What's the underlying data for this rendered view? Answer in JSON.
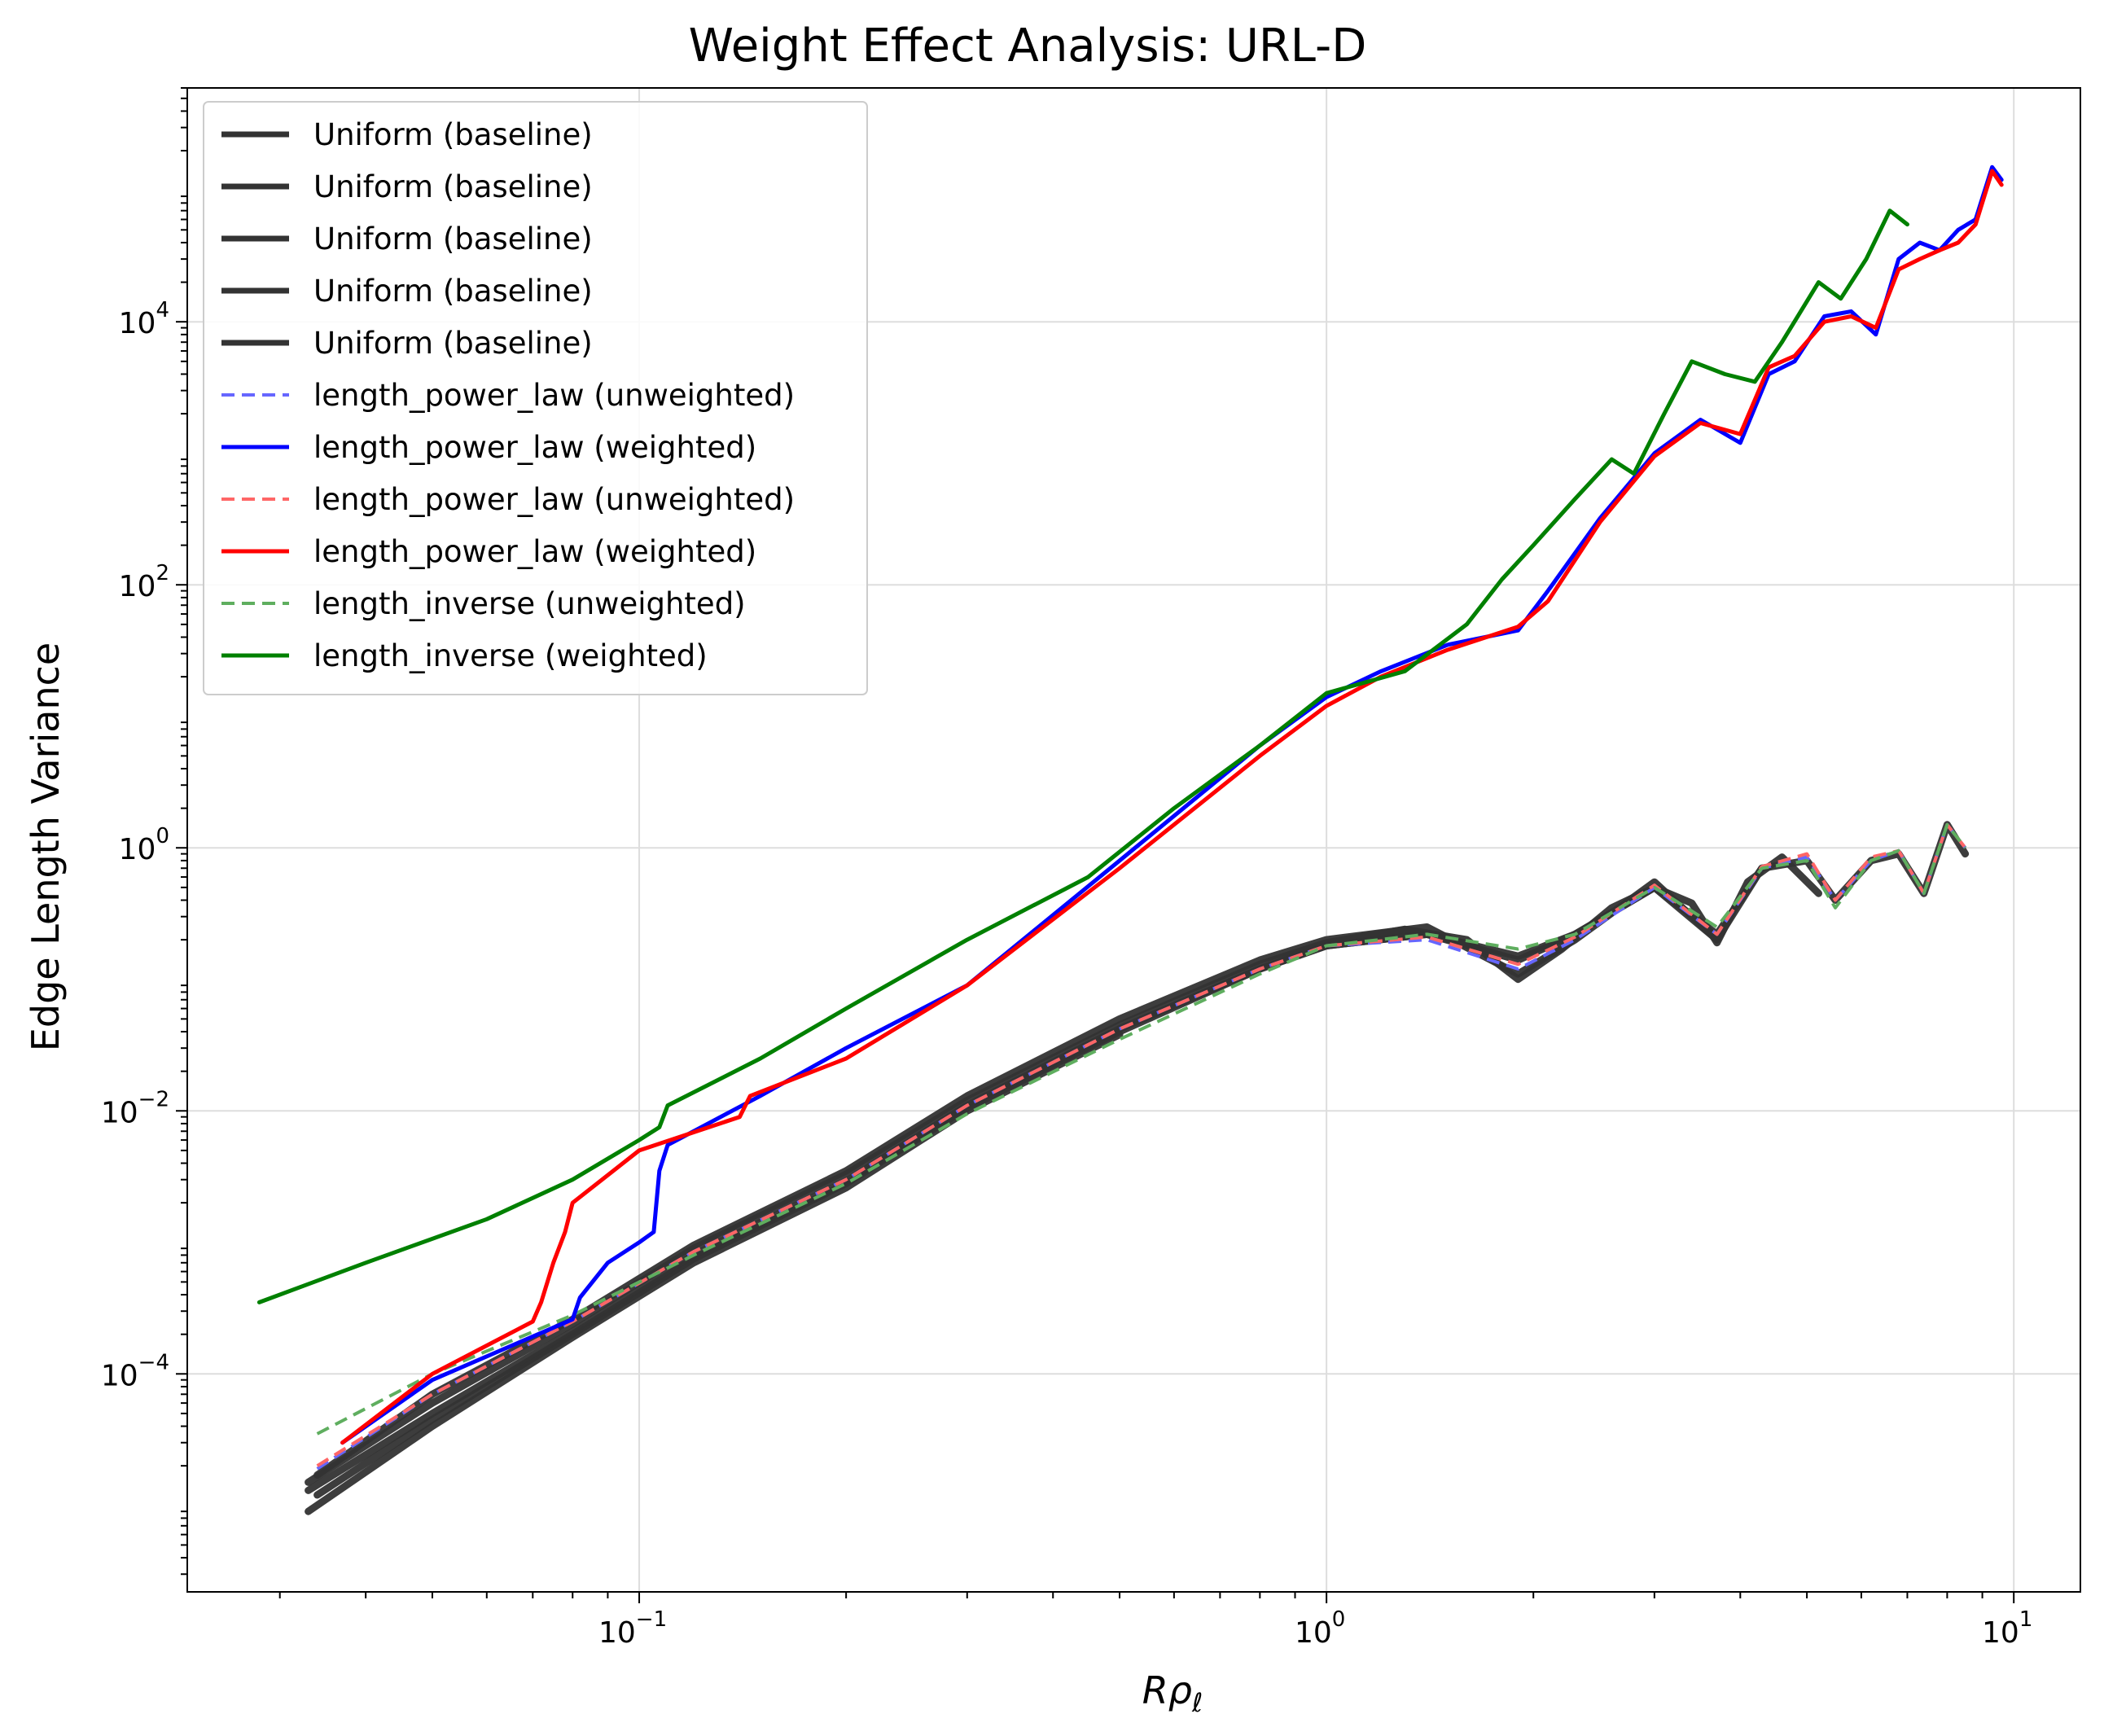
{
  "chart_data": {
    "type": "line",
    "title": "Weight Effect Analysis: URL-D",
    "xlabel_main": "R",
    "xlabel_rho": "ρ",
    "xlabel_sub": "ℓ",
    "ylabel": "Edge Length Variance",
    "xscale": "log",
    "yscale": "log",
    "xlim": [
      0.022,
      12.5
    ],
    "ylim": [
      2.2e-06,
      0.00045,
      600000
    ],
    "y_range": [
      2.2e-06,
      600000
    ],
    "grid": true,
    "legend_position": "top-left",
    "x_ticks": [
      {
        "value": 0.1,
        "base": "10",
        "exp": "−1"
      },
      {
        "value": 1,
        "base": "10",
        "exp": "0"
      },
      {
        "value": 10,
        "base": "10",
        "exp": "1"
      }
    ],
    "y_ticks": [
      {
        "value": 0.0001,
        "base": "10",
        "exp": "−4"
      },
      {
        "value": 0.01,
        "base": "10",
        "exp": "−2"
      },
      {
        "value": 1,
        "base": "10",
        "exp": "0"
      },
      {
        "value": 100,
        "base": "10",
        "exp": "2"
      },
      {
        "value": 10000,
        "base": "10",
        "exp": "4"
      }
    ],
    "legend": [
      {
        "label": "Uniform (baseline)",
        "color": "#333333",
        "dash": "solid",
        "width": 7
      },
      {
        "label": "Uniform (baseline)",
        "color": "#333333",
        "dash": "solid",
        "width": 7
      },
      {
        "label": "Uniform (baseline)",
        "color": "#333333",
        "dash": "solid",
        "width": 7
      },
      {
        "label": "Uniform (baseline)",
        "color": "#333333",
        "dash": "solid",
        "width": 7
      },
      {
        "label": "Uniform (baseline)",
        "color": "#333333",
        "dash": "solid",
        "width": 7
      },
      {
        "label": "length_power_law (unweighted)",
        "color": "#6666ff",
        "dash": "dashed",
        "width": 4
      },
      {
        "label": "length_power_law (weighted)",
        "color": "#0000ff",
        "dash": "solid",
        "width": 5
      },
      {
        "label": "length_power_law (unweighted)",
        "color": "#ff6666",
        "dash": "dashed",
        "width": 4
      },
      {
        "label": "length_power_law (weighted)",
        "color": "#ff0000",
        "dash": "solid",
        "width": 5
      },
      {
        "label": "length_inverse (unweighted)",
        "color": "#5fae5f",
        "dash": "dashed",
        "width": 4
      },
      {
        "label": "length_inverse (weighted)",
        "color": "#008000",
        "dash": "solid",
        "width": 5
      }
    ],
    "series": [
      {
        "name": "Uniform (baseline)",
        "color": "#333333",
        "dash": "solid",
        "width": 9,
        "x": [
          0.033,
          0.05,
          0.08,
          0.12,
          0.2,
          0.3,
          0.5,
          0.8,
          1.0,
          1.3,
          1.6,
          1.9,
          2.2,
          2.6,
          3.0,
          3.4,
          3.7,
          4.1,
          4.6,
          5.2
        ],
        "y": [
          1.5e-05,
          6e-05,
          0.00024,
          0.0009,
          0.0033,
          0.012,
          0.045,
          0.13,
          0.19,
          0.24,
          0.2,
          0.1,
          0.17,
          0.35,
          0.5,
          0.38,
          0.19,
          0.55,
          0.85,
          0.45
        ]
      },
      {
        "name": "Uniform (baseline)",
        "color": "#333333",
        "dash": "solid",
        "width": 9,
        "x": [
          0.033,
          0.05,
          0.08,
          0.12,
          0.2,
          0.3,
          0.5,
          0.8,
          1.0,
          1.4,
          1.9,
          2.3,
          3.0,
          3.7,
          4.3
        ],
        "y": [
          1.3e-05,
          5e-05,
          0.00021,
          0.0008,
          0.0029,
          0.011,
          0.042,
          0.12,
          0.18,
          0.22,
          0.14,
          0.22,
          0.5,
          0.2,
          0.7
        ]
      },
      {
        "name": "Uniform (baseline)",
        "color": "#333333",
        "dash": "solid",
        "width": 9,
        "x": [
          0.034,
          0.05,
          0.08,
          0.12,
          0.2,
          0.3,
          0.5,
          0.8,
          1.0,
          1.4,
          1.9,
          2.3,
          3.0,
          3.7,
          4.3,
          5.0,
          5.5,
          6.2,
          6.8,
          7.4,
          8.0,
          8.5
        ],
        "y": [
          1.2e-05,
          4.5e-05,
          0.0002,
          0.00075,
          0.0028,
          0.0105,
          0.04,
          0.12,
          0.18,
          0.22,
          0.15,
          0.22,
          0.5,
          0.22,
          0.7,
          0.8,
          0.4,
          0.8,
          0.9,
          0.45,
          1.5,
          0.9
        ]
      },
      {
        "name": "Uniform (baseline)",
        "color": "#333333",
        "dash": "solid",
        "width": 9,
        "x": [
          0.034,
          0.05,
          0.08,
          0.12,
          0.2,
          0.3,
          0.5,
          0.8,
          1.0,
          1.4,
          1.9,
          2.3,
          3.0,
          3.7
        ],
        "y": [
          1.7e-05,
          7e-05,
          0.00026,
          0.00095,
          0.0035,
          0.013,
          0.05,
          0.14,
          0.2,
          0.25,
          0.11,
          0.2,
          0.55,
          0.2
        ]
      },
      {
        "name": "Uniform (baseline)",
        "color": "#333333",
        "dash": "solid",
        "width": 9,
        "x": [
          0.033,
          0.05,
          0.08,
          0.12,
          0.2,
          0.3,
          0.5
        ],
        "y": [
          9e-06,
          4e-05,
          0.00019,
          0.0007,
          0.0026,
          0.01,
          0.038
        ]
      },
      {
        "name": "length_power_law (unweighted)",
        "color": "#6666ff",
        "dash": "dashed",
        "width": 4,
        "x": [
          0.034,
          0.05,
          0.08,
          0.12,
          0.2,
          0.3,
          0.5,
          0.8,
          1.0,
          1.4,
          1.9,
          2.3,
          3.0,
          3.7,
          4.3,
          5.0,
          5.5,
          6.2,
          6.8,
          7.4,
          8.0,
          8.5
        ],
        "y": [
          1.9e-05,
          7e-05,
          0.00025,
          0.00085,
          0.003,
          0.011,
          0.042,
          0.12,
          0.18,
          0.2,
          0.12,
          0.2,
          0.5,
          0.22,
          0.7,
          0.85,
          0.4,
          0.8,
          0.95,
          0.45,
          1.5,
          1.0
        ]
      },
      {
        "name": "length_power_law (unweighted)",
        "color": "#ff6666",
        "dash": "dashed",
        "width": 4,
        "x": [
          0.034,
          0.05,
          0.08,
          0.12,
          0.2,
          0.3,
          0.5,
          0.8,
          1.0,
          1.4,
          1.9,
          2.3,
          3.0,
          3.7,
          4.3,
          5.0,
          5.5,
          6.2,
          6.8,
          7.4,
          8.0,
          8.5
        ],
        "y": [
          2e-05,
          7e-05,
          0.00025,
          0.00085,
          0.003,
          0.011,
          0.042,
          0.12,
          0.18,
          0.21,
          0.13,
          0.21,
          0.52,
          0.22,
          0.72,
          0.9,
          0.4,
          0.85,
          0.95,
          0.45,
          1.5,
          1.0
        ]
      },
      {
        "name": "length_inverse (unweighted)",
        "color": "#5fae5f",
        "dash": "dashed",
        "width": 4,
        "x": [
          0.034,
          0.05,
          0.08,
          0.12,
          0.2,
          0.3,
          0.5,
          0.8,
          1.0,
          1.4,
          1.9,
          2.3,
          3.0,
          3.7,
          4.3,
          5.0,
          5.5,
          6.2,
          6.8,
          7.4,
          8.0,
          8.5
        ],
        "y": [
          3.5e-05,
          0.0001,
          0.00028,
          0.0008,
          0.0028,
          0.0095,
          0.035,
          0.11,
          0.18,
          0.22,
          0.17,
          0.22,
          0.5,
          0.25,
          0.7,
          0.8,
          0.35,
          0.8,
          0.95,
          0.45,
          1.5,
          1.0
        ]
      },
      {
        "name": "length_power_law (weighted)",
        "color": "#0000ff",
        "dash": "solid",
        "width": 5,
        "x": [
          0.037,
          0.05,
          0.08,
          0.082,
          0.09,
          0.1,
          0.105,
          0.107,
          0.11,
          0.15,
          0.2,
          0.3,
          0.5,
          0.8,
          1.0,
          1.2,
          1.5,
          1.9,
          2.1,
          2.5,
          3.0,
          3.5,
          4.0,
          4.4,
          4.8,
          5.3,
          5.8,
          6.3,
          6.8,
          7.3,
          7.8,
          8.3,
          8.8,
          9.3,
          9.6
        ],
        "y": [
          3e-05,
          9e-05,
          0.00026,
          0.00038,
          0.0007,
          0.001,
          0.0012,
          0.0035,
          0.0055,
          0.013,
          0.03,
          0.09,
          0.8,
          6,
          14,
          22,
          35,
          45,
          90,
          320,
          1000,
          1800,
          1200,
          4000,
          5000,
          11000,
          12000,
          8000,
          30000,
          40000,
          35000,
          50000,
          60000,
          150000,
          120000
        ]
      },
      {
        "name": "length_power_law (weighted)",
        "color": "#ff0000",
        "dash": "solid",
        "width": 5,
        "x": [
          0.037,
          0.05,
          0.07,
          0.072,
          0.075,
          0.078,
          0.08,
          0.1,
          0.14,
          0.145,
          0.2,
          0.3,
          0.5,
          0.8,
          1.0,
          1.2,
          1.5,
          1.9,
          2.1,
          2.5,
          3.0,
          3.5,
          4.0,
          4.4,
          4.8,
          5.3,
          5.8,
          6.3,
          6.8,
          7.3,
          7.8,
          8.3,
          8.8,
          9.3,
          9.6
        ],
        "y": [
          3e-05,
          0.0001,
          0.00025,
          0.00035,
          0.0007,
          0.0012,
          0.002,
          0.005,
          0.009,
          0.013,
          0.025,
          0.09,
          0.7,
          5,
          12,
          20,
          32,
          48,
          75,
          300,
          950,
          1700,
          1400,
          4500,
          5500,
          10000,
          11000,
          9000,
          25000,
          30000,
          35000,
          40000,
          55000,
          140000,
          110000
        ]
      },
      {
        "name": "length_inverse (weighted)",
        "color": "#008000",
        "dash": "solid",
        "width": 5,
        "x": [
          0.028,
          0.04,
          0.06,
          0.08,
          0.1,
          0.107,
          0.11,
          0.15,
          0.2,
          0.3,
          0.45,
          0.6,
          0.8,
          1.0,
          1.3,
          1.6,
          1.8,
          2.0,
          2.3,
          2.6,
          2.8,
          3.1,
          3.4,
          3.8,
          4.2,
          4.6,
          5.2,
          5.6,
          6.1,
          6.6,
          7.0
        ],
        "y": [
          0.00035,
          0.0007,
          0.0015,
          0.003,
          0.006,
          0.0075,
          0.011,
          0.025,
          0.06,
          0.2,
          0.6,
          2.0,
          6,
          15,
          22,
          50,
          110,
          200,
          450,
          900,
          700,
          2000,
          5000,
          4000,
          3500,
          7000,
          20000,
          15000,
          30000,
          70000,
          55000
        ]
      }
    ]
  }
}
